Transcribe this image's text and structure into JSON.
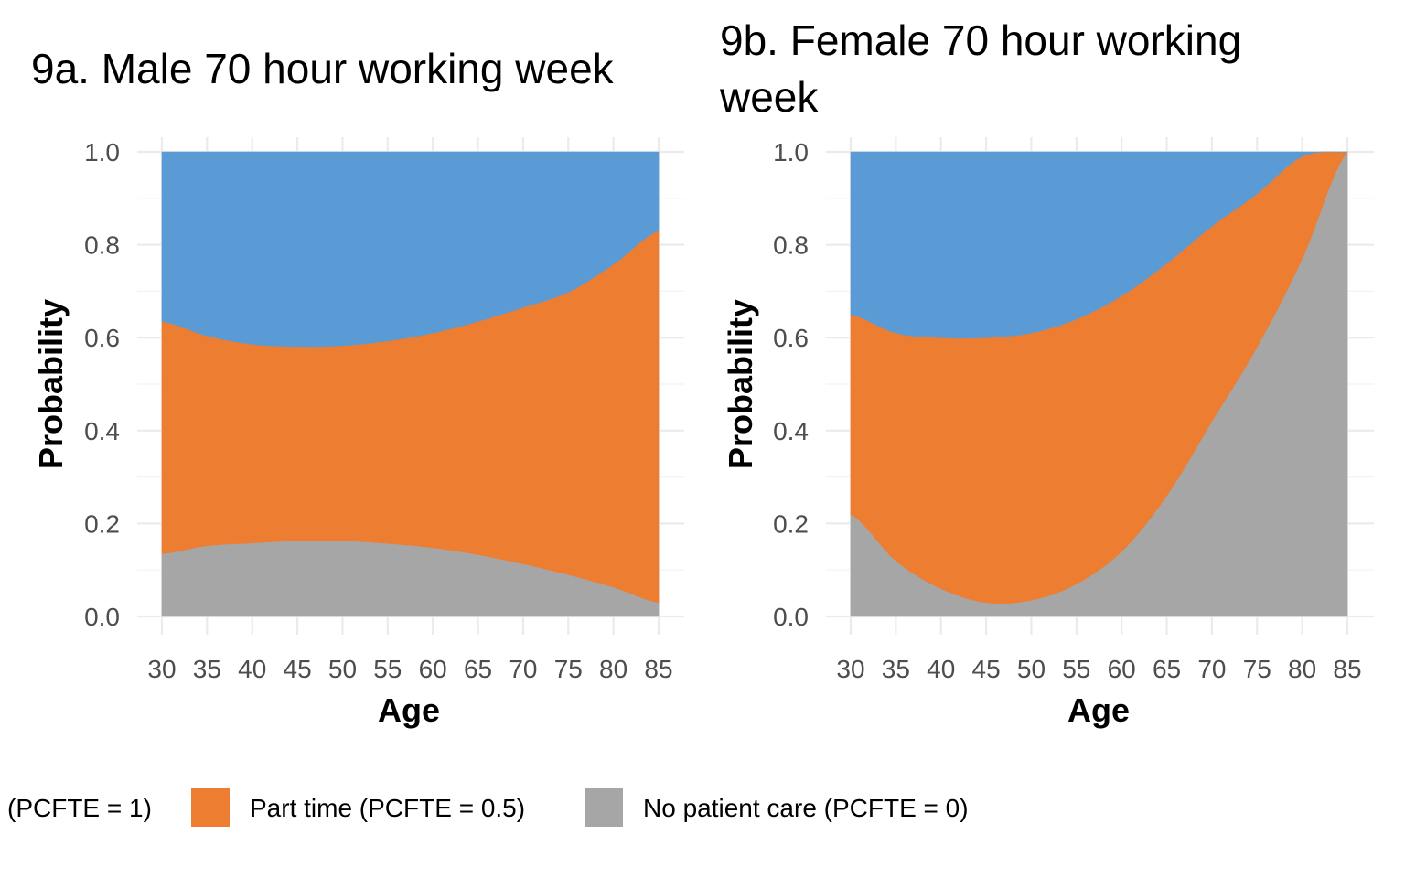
{
  "chart_data": [
    {
      "type": "area",
      "stacked": true,
      "title": "9a. Male 70 hour working week",
      "xlabel": "Age",
      "ylabel": "Probability",
      "xlim": [
        30,
        85
      ],
      "ylim": [
        0,
        1
      ],
      "x_ticks": [
        "30",
        "35",
        "40",
        "45",
        "50",
        "55",
        "60",
        "65",
        "70",
        "75",
        "80",
        "85"
      ],
      "y_ticks": [
        "0.0",
        "0.2",
        "0.4",
        "0.6",
        "0.8",
        "1.0"
      ],
      "x": [
        30,
        35,
        40,
        45,
        50,
        55,
        60,
        65,
        70,
        75,
        80,
        85
      ],
      "series": [
        {
          "name": "No patient care (PCFTE = 0)",
          "color": "#a6a6a6",
          "values": [
            0.135,
            0.152,
            0.158,
            0.163,
            0.163,
            0.157,
            0.148,
            0.133,
            0.113,
            0.09,
            0.063,
            0.03
          ]
        },
        {
          "name": "Part time (PCFTE = 0.5)",
          "color": "#ed7d31",
          "values": [
            0.5,
            0.452,
            0.428,
            0.418,
            0.42,
            0.436,
            0.462,
            0.502,
            0.552,
            0.608,
            0.695,
            0.8
          ]
        },
        {
          "name": "(PCFTE = 1)",
          "color": "#5b9bd5",
          "values": [
            0.365,
            0.396,
            0.414,
            0.419,
            0.417,
            0.407,
            0.39,
            0.365,
            0.335,
            0.302,
            0.242,
            0.17
          ]
        }
      ]
    },
    {
      "type": "area",
      "stacked": true,
      "title": "9b. Female 70 hour working week",
      "xlabel": "Age",
      "ylabel": "Probability",
      "xlim": [
        30,
        85
      ],
      "ylim": [
        0,
        1
      ],
      "x_ticks": [
        "30",
        "35",
        "40",
        "45",
        "50",
        "55",
        "60",
        "65",
        "70",
        "75",
        "80",
        "85"
      ],
      "y_ticks": [
        "0.0",
        "0.2",
        "0.4",
        "0.6",
        "0.8",
        "1.0"
      ],
      "x": [
        30,
        35,
        40,
        45,
        50,
        55,
        60,
        65,
        70,
        75,
        80,
        85
      ],
      "series": [
        {
          "name": "No patient care (PCFTE = 0)",
          "color": "#a6a6a6",
          "values": [
            0.22,
            0.12,
            0.06,
            0.03,
            0.035,
            0.07,
            0.14,
            0.26,
            0.42,
            0.58,
            0.77,
            1.0
          ]
        },
        {
          "name": "Part time (PCFTE = 0.5)",
          "color": "#ed7d31",
          "values": [
            0.43,
            0.49,
            0.54,
            0.57,
            0.575,
            0.57,
            0.55,
            0.5,
            0.42,
            0.33,
            0.22,
            0.0
          ]
        },
        {
          "name": "(PCFTE = 1)",
          "color": "#5b9bd5",
          "values": [
            0.35,
            0.39,
            0.4,
            0.4,
            0.39,
            0.36,
            0.31,
            0.24,
            0.16,
            0.09,
            0.01,
            0.0
          ]
        }
      ]
    }
  ],
  "legend": {
    "items": [
      {
        "label": "(PCFTE = 1)",
        "color": "#5b9bd5"
      },
      {
        "label": "Part time (PCFTE = 0.5)",
        "color": "#ed7d31"
      },
      {
        "label": "No patient care (PCFTE = 0)",
        "color": "#a6a6a6"
      }
    ]
  }
}
